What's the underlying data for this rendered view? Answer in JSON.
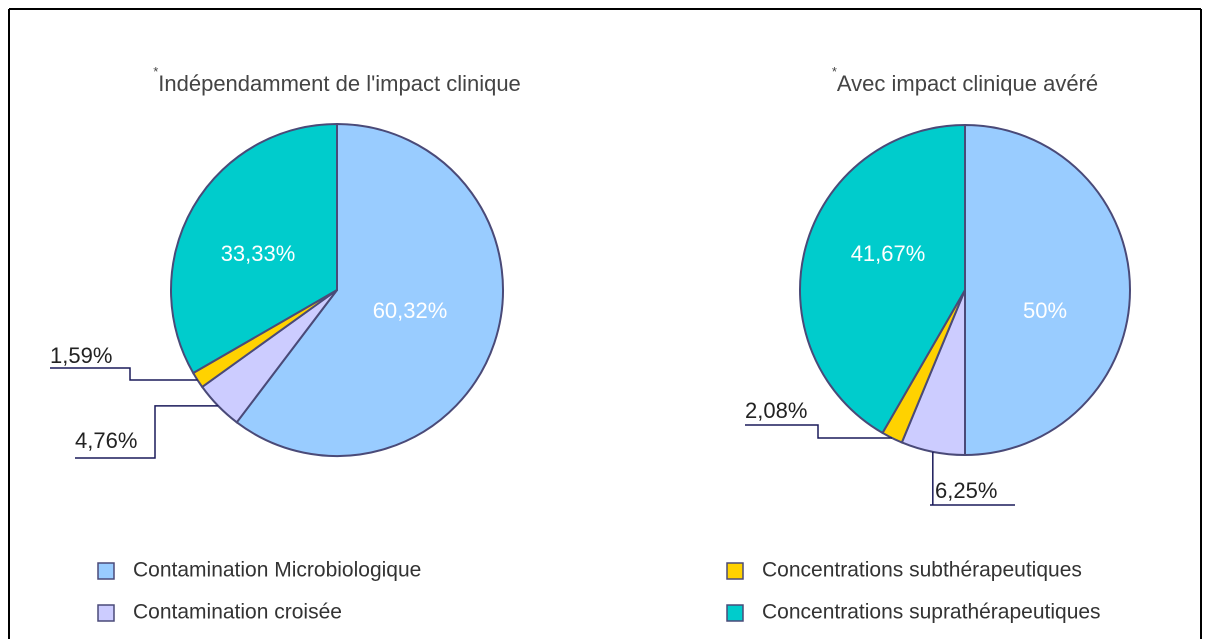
{
  "chart_data": [
    {
      "type": "pie",
      "title_note": "*",
      "title": "Indépendamment de l'impact clinique",
      "values": [
        60.32,
        4.76,
        1.59,
        33.33
      ],
      "value_labels": [
        "60,32%",
        "4,76%",
        "1,59%",
        "33,33%"
      ]
    },
    {
      "type": "pie",
      "title_note": "*",
      "title": "Avec impact clinique avéré",
      "values": [
        50,
        6.25,
        2.08,
        41.67
      ],
      "value_labels": [
        "50%",
        "6,25%",
        "2,08%",
        "41,67%"
      ]
    }
  ],
  "legend": {
    "categories": [
      "Contamination Microbiologique",
      "Contamination croisée",
      "Concentrations subthérapeutiques",
      "Concentrations suprathérapeutiques"
    ],
    "colors": [
      "#99ccff",
      "#ccccff",
      "#ffd200",
      "#00cccc"
    ]
  }
}
